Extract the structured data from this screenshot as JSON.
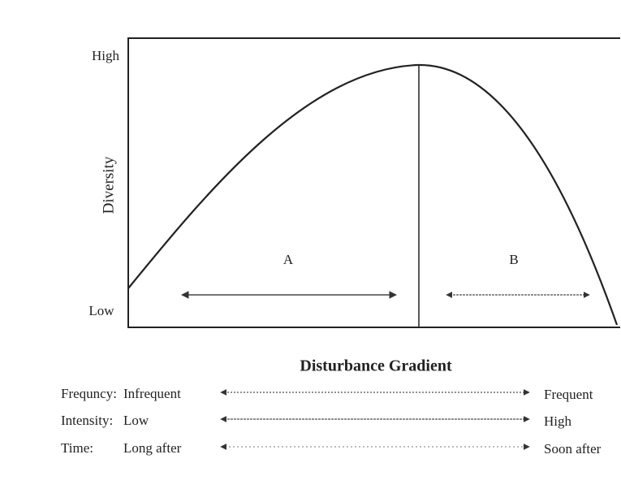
{
  "y_axis": {
    "label": "Diversity",
    "high": "High",
    "low": "Low"
  },
  "regions": [
    {
      "label": "A"
    },
    {
      "label": "B"
    }
  ],
  "gradient": {
    "title": "Disturbance Gradient",
    "rows": [
      {
        "label": "Frequncy:",
        "left": "Infrequent",
        "right": "Frequent"
      },
      {
        "label": "Intensity:",
        "left": "Low",
        "right": "High"
      },
      {
        "label": "Time:",
        "left": "Long after",
        "right": "Soon after"
      }
    ]
  }
}
